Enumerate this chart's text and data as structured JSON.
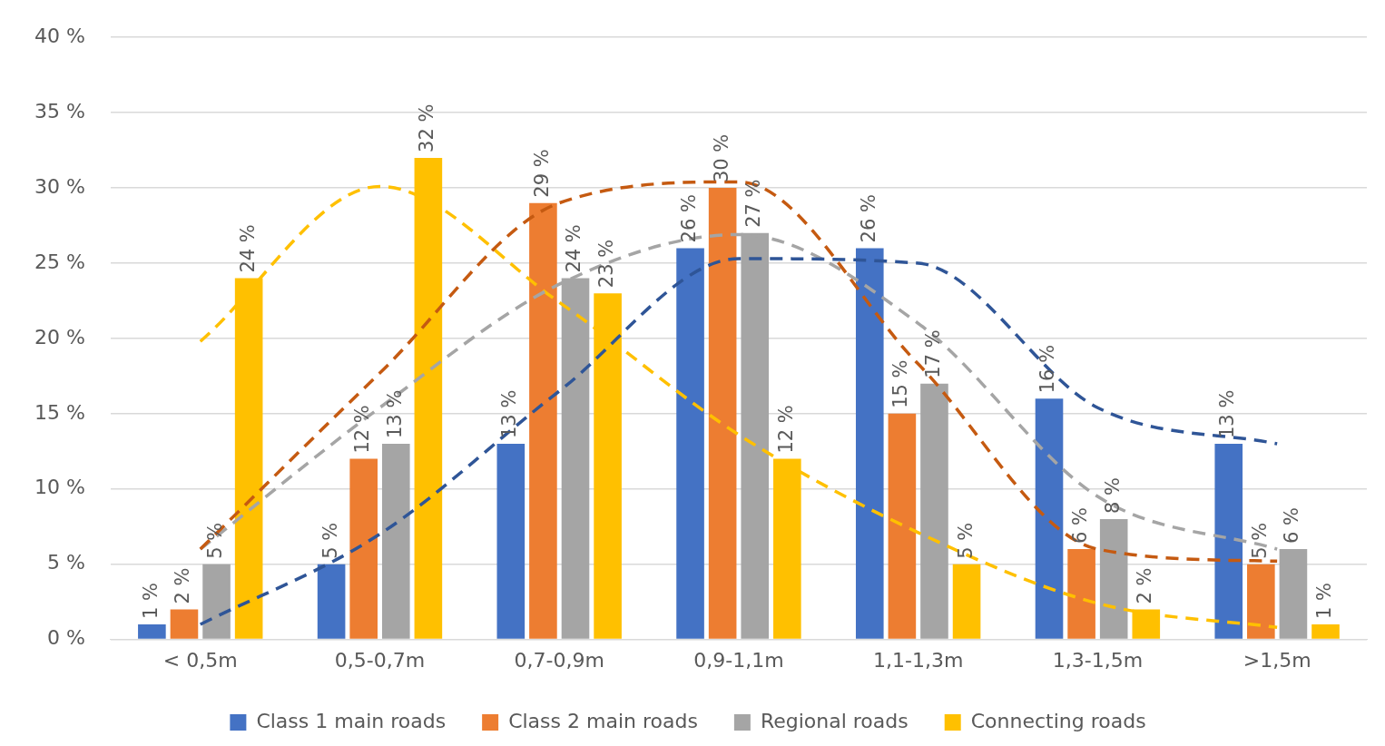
{
  "chart_data": {
    "type": "bar",
    "categories": [
      "< 0,5m",
      "0,5-0,7m",
      "0,7-0,9m",
      "0,9-1,1m",
      "1,1-1,3m",
      "1,3-1,5m",
      ">1,5m"
    ],
    "ylim": [
      0,
      40
    ],
    "yticks": [
      {
        "value": 0,
        "label": "0 %"
      },
      {
        "value": 5,
        "label": "5 %"
      },
      {
        "value": 10,
        "label": "10 %"
      },
      {
        "value": 15,
        "label": "15 %"
      },
      {
        "value": 20,
        "label": "20 %"
      },
      {
        "value": 25,
        "label": "25 %"
      },
      {
        "value": 30,
        "label": "30 %"
      },
      {
        "value": 35,
        "label": "35 %"
      },
      {
        "value": 40,
        "label": "40 %"
      }
    ],
    "grid": "y",
    "legend": "bottom",
    "series": [
      {
        "name": "Class 1 main roads",
        "color": "#4472c4",
        "values": [
          1,
          5,
          13,
          26,
          26,
          16,
          13
        ],
        "value_labels": [
          "1 %",
          "5 %",
          "13 %",
          "26 %",
          "26 %",
          "16 %",
          "13 %"
        ]
      },
      {
        "name": "Class 2 main roads",
        "color": "#ed7d31",
        "values": [
          2,
          12,
          29,
          30,
          15,
          6,
          5
        ],
        "value_labels": [
          "2 %",
          "12 %",
          "29 %",
          "30 %",
          "15 %",
          "6 %",
          "5 %"
        ]
      },
      {
        "name": "Regional roads",
        "color": "#a5a5a5",
        "values": [
          5,
          13,
          24,
          27,
          17,
          8,
          6
        ],
        "value_labels": [
          "5 %",
          "13 %",
          "24 %",
          "27 %",
          "17 %",
          "8 %",
          "6 %"
        ]
      },
      {
        "name": "Connecting roads",
        "color": "#ffc000",
        "values": [
          24,
          32,
          23,
          12,
          5,
          2,
          1
        ],
        "value_labels": [
          "24 %",
          "32 %",
          "23 %",
          "12 %",
          "5 %",
          "2 %",
          "1 %"
        ]
      },
      {
        "type": "line",
        "color": "#2f5597",
        "line_style": "dashed",
        "marker": "none",
        "values": [
          1,
          7,
          16.5,
          25.3,
          25,
          15.4,
          13
        ]
      },
      {
        "type": "line",
        "color": "#c55a11",
        "line_style": "dashed",
        "marker": "none",
        "values": [
          6,
          17.7,
          29,
          30.4,
          18.3,
          6,
          5.2
        ]
      },
      {
        "type": "line",
        "color": "#a5a5a5",
        "line_style": "dashed",
        "marker": "none",
        "values": [
          6,
          15.4,
          23.6,
          26.9,
          21,
          9.5,
          6
        ]
      },
      {
        "type": "line",
        "color": "#ffc000",
        "line_style": "dashed",
        "marker": "none",
        "values": [
          19.8,
          30.1,
          22.4,
          13.6,
          7.1,
          2.4,
          0.8
        ]
      }
    ]
  }
}
